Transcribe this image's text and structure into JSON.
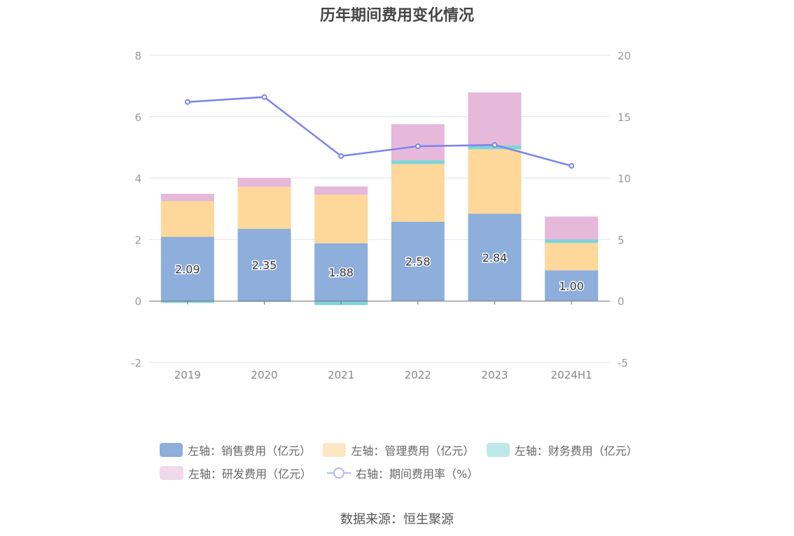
{
  "chart_data": {
    "type": "bar",
    "title": "历年期间费用变化情况",
    "categories": [
      "2019",
      "2020",
      "2021",
      "2022",
      "2023",
      "2024H1"
    ],
    "left_axis": {
      "ylim": [
        -2,
        8
      ],
      "ticks": [
        "8",
        "6",
        "4",
        "2",
        "0",
        "-2"
      ]
    },
    "right_axis": {
      "ylim": [
        -5,
        20
      ],
      "ticks": [
        "20",
        "15",
        "10",
        "5",
        "0",
        "-5"
      ]
    },
    "series": [
      {
        "name": "左轴：销售费用（亿元）",
        "type": "bar",
        "axis": "left",
        "color": "#8eaedb",
        "values": [
          2.09,
          2.35,
          1.88,
          2.58,
          2.84,
          1.0
        ],
        "labels": [
          "2.09",
          "2.35",
          "1.88",
          "2.58",
          "2.84",
          "1.00"
        ]
      },
      {
        "name": "左轴：管理费用（亿元）",
        "type": "bar",
        "axis": "left",
        "color": "#fdd89a",
        "values": [
          1.16,
          1.37,
          1.58,
          1.88,
          2.1,
          0.89
        ]
      },
      {
        "name": "左轴：财务费用（亿元）",
        "type": "bar",
        "axis": "left",
        "color": "#7fd4d8",
        "values": [
          -0.06,
          -0.03,
          -0.13,
          0.12,
          0.13,
          0.12
        ]
      },
      {
        "name": "左轴：研发费用（亿元）",
        "type": "bar",
        "axis": "left",
        "color": "#e6b8da",
        "values": [
          0.24,
          0.29,
          0.27,
          1.18,
          1.72,
          0.74
        ]
      },
      {
        "name": "右轴：期间费用率（%）",
        "type": "line",
        "axis": "right",
        "color": "#7b83eb",
        "values": [
          16.2,
          16.6,
          11.8,
          12.6,
          12.7,
          11.0
        ]
      }
    ],
    "grid": true,
    "legend_position": "bottom"
  },
  "source": "数据来源：恒生聚源"
}
